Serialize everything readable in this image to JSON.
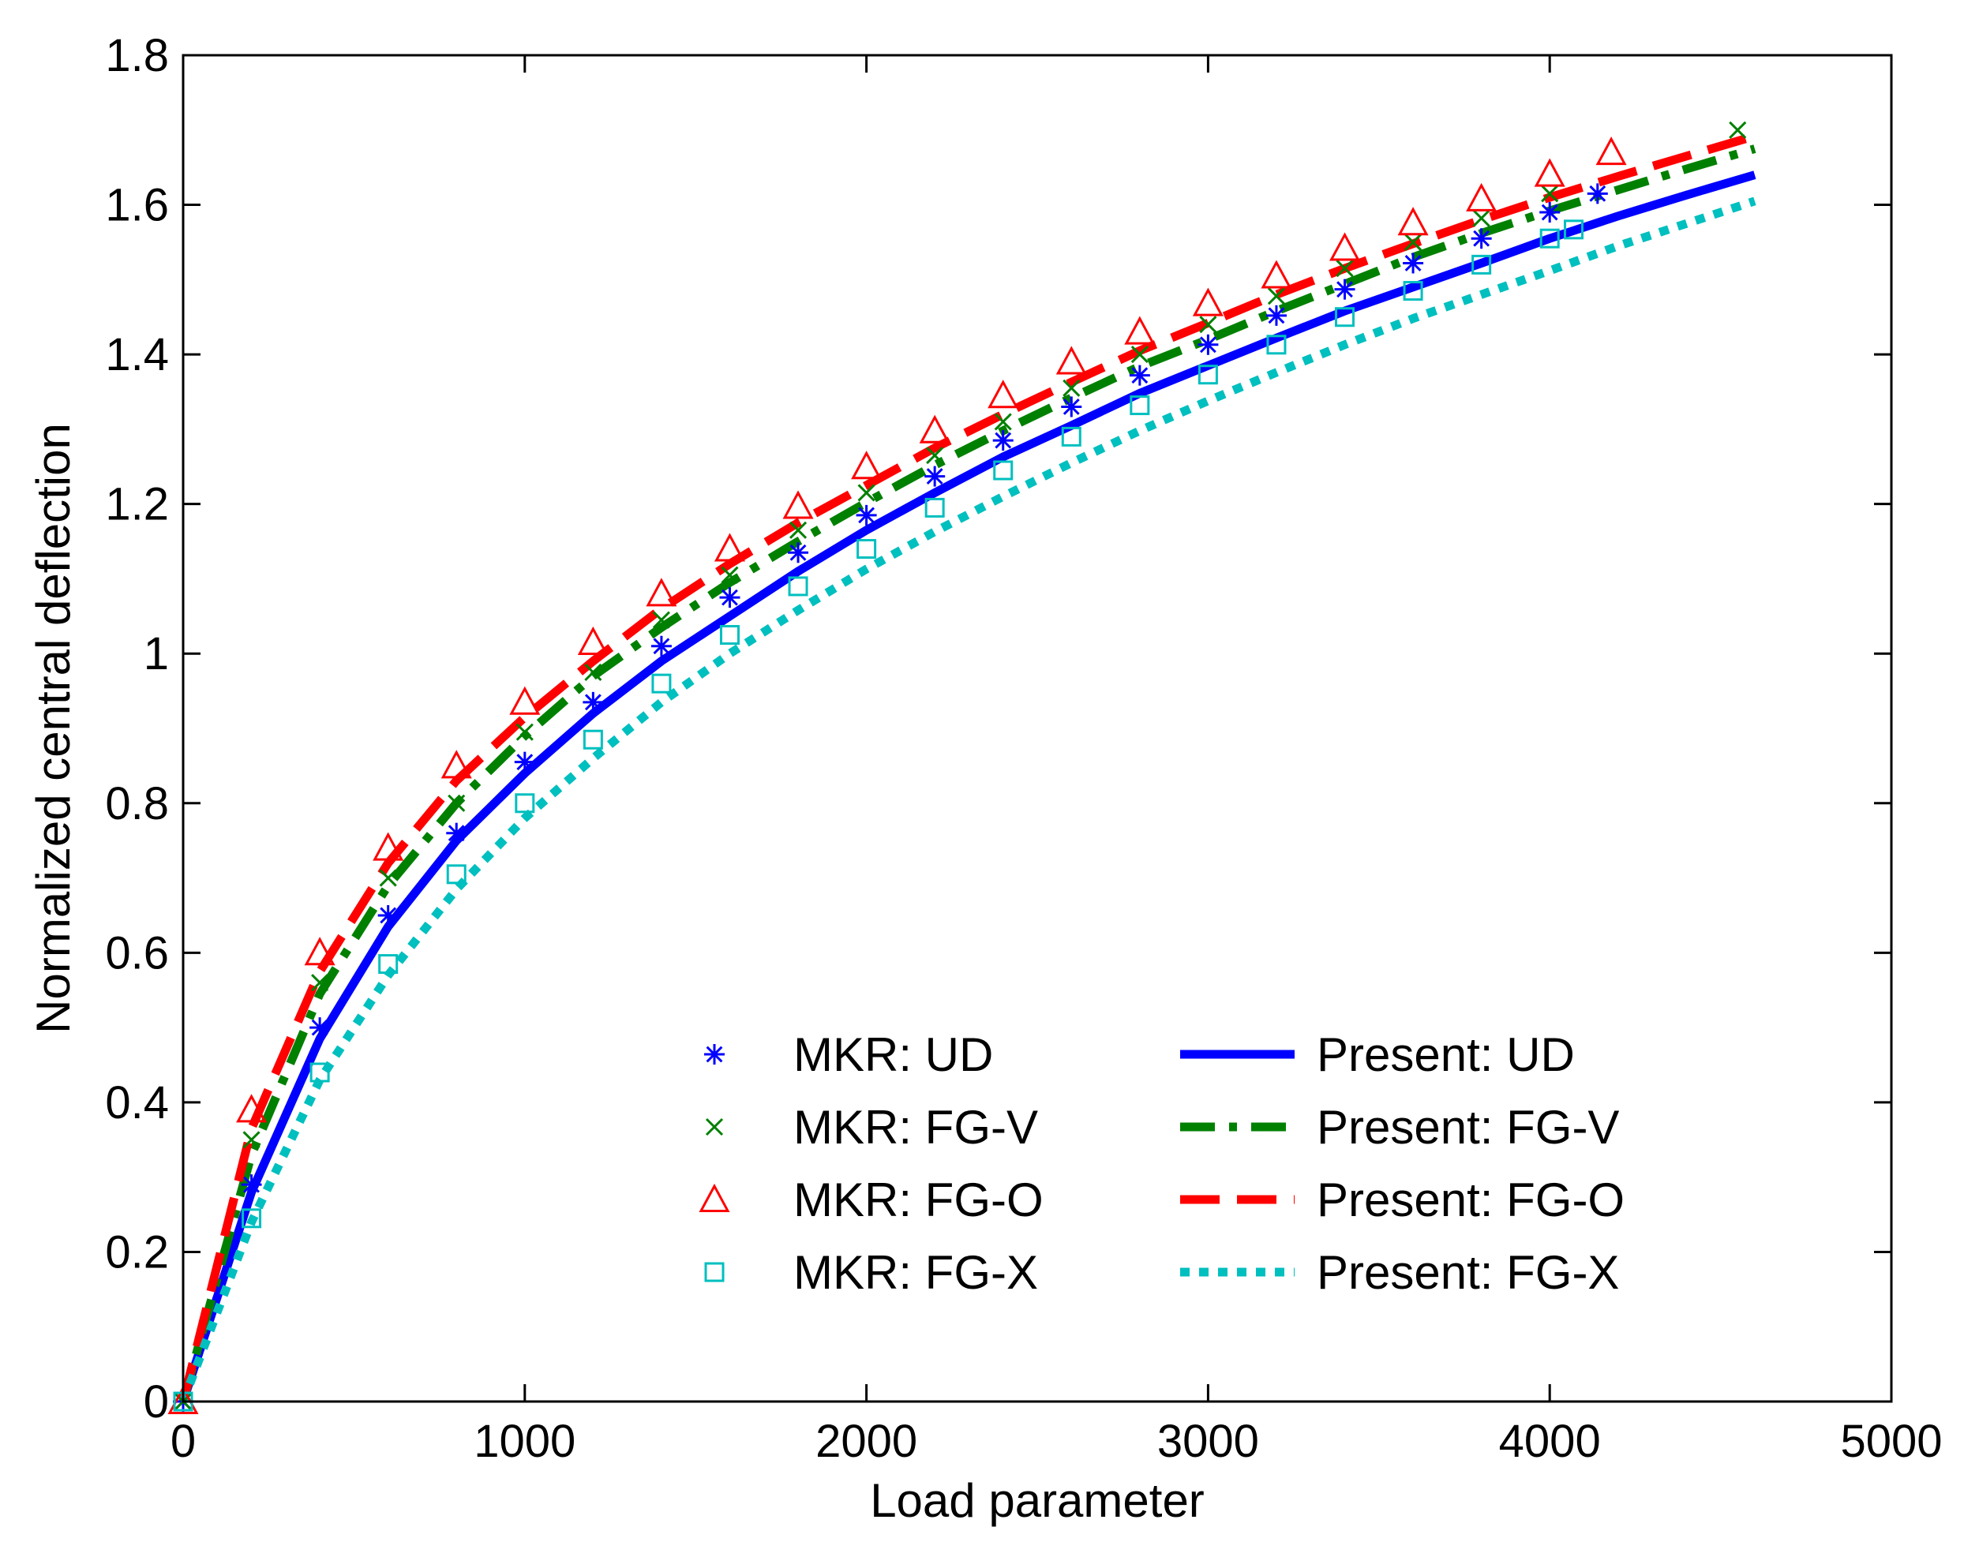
{
  "chart_data": {
    "type": "line",
    "title": "",
    "xlabel": "Load parameter",
    "ylabel": "Normalized central deflection",
    "xlim": [
      0,
      5000
    ],
    "ylim": [
      0,
      1.8
    ],
    "grid": false,
    "legend_position": "center-bottom",
    "x_ticks": [
      0,
      1000,
      2000,
      3000,
      4000,
      5000
    ],
    "y_ticks": [
      0,
      0.2,
      0.4,
      0.6,
      0.8,
      1,
      1.2,
      1.4,
      1.6,
      1.8
    ],
    "x_tick_labels": [
      "0",
      "1000",
      "2000",
      "3000",
      "4000",
      "5000"
    ],
    "y_tick_labels": [
      "0",
      "0.2",
      "0.4",
      "0.6",
      "0.8",
      "1",
      "1.2",
      "1.4",
      "1.6",
      "1.8"
    ],
    "marker_series": [
      {
        "name": "MKR: UD",
        "marker": "asterisk",
        "color": "#0000ff",
        "x": [
          0,
          200,
          400,
          600,
          800,
          1000,
          1200,
          1400,
          1600,
          1800,
          2000,
          2200,
          2400,
          2600,
          2800,
          3000,
          3200,
          3400,
          3600,
          3800,
          4000,
          4140
        ],
        "y": [
          0,
          0.29,
          0.5,
          0.65,
          0.76,
          0.855,
          0.935,
          1.01,
          1.075,
          1.135,
          1.185,
          1.237,
          1.285,
          1.33,
          1.372,
          1.413,
          1.452,
          1.487,
          1.522,
          1.555,
          1.59,
          1.615
        ]
      },
      {
        "name": "MKR: FG-V",
        "marker": "x",
        "color": "#008000",
        "x": [
          0,
          200,
          400,
          600,
          800,
          1000,
          1200,
          1400,
          1600,
          1800,
          2000,
          2200,
          2400,
          2600,
          2800,
          3000,
          3200,
          3400,
          3600,
          3800,
          4000,
          4550
        ],
        "y": [
          0,
          0.35,
          0.56,
          0.7,
          0.8,
          0.895,
          0.975,
          1.045,
          1.105,
          1.165,
          1.215,
          1.265,
          1.31,
          1.355,
          1.4,
          1.44,
          1.478,
          1.515,
          1.55,
          1.582,
          1.615,
          1.7
        ]
      },
      {
        "name": "MKR: FG-O",
        "marker": "triangle",
        "color": "#ff0000",
        "x": [
          0,
          200,
          400,
          600,
          800,
          1000,
          1200,
          1400,
          1600,
          1800,
          2000,
          2200,
          2400,
          2600,
          2800,
          3000,
          3200,
          3400,
          3600,
          3800,
          4000,
          4180
        ],
        "y": [
          0,
          0.39,
          0.6,
          0.74,
          0.85,
          0.935,
          1.015,
          1.08,
          1.14,
          1.197,
          1.25,
          1.298,
          1.345,
          1.39,
          1.43,
          1.468,
          1.505,
          1.542,
          1.576,
          1.608,
          1.641,
          1.67
        ]
      },
      {
        "name": "MKR: FG-X",
        "marker": "square",
        "color": "#00bfbf",
        "x": [
          0,
          200,
          400,
          600,
          800,
          1000,
          1200,
          1400,
          1600,
          1800,
          2000,
          2200,
          2400,
          2600,
          2800,
          3000,
          3200,
          3400,
          3600,
          3800,
          4000,
          4070
        ],
        "y": [
          0,
          0.245,
          0.44,
          0.585,
          0.705,
          0.8,
          0.885,
          0.96,
          1.025,
          1.09,
          1.14,
          1.195,
          1.245,
          1.29,
          1.332,
          1.373,
          1.413,
          1.45,
          1.485,
          1.52,
          1.555,
          1.567
        ]
      }
    ],
    "line_series": [
      {
        "name": "Present: UD",
        "style": "solid",
        "color": "#0000ff",
        "x": [
          0,
          200,
          400,
          600,
          800,
          1000,
          1200,
          1400,
          1600,
          1800,
          2000,
          2200,
          2400,
          2600,
          2800,
          3000,
          3200,
          3400,
          3600,
          3800,
          4000,
          4200,
          4400,
          4600
        ],
        "y": [
          0,
          0.28,
          0.485,
          0.635,
          0.75,
          0.84,
          0.92,
          0.99,
          1.05,
          1.11,
          1.165,
          1.215,
          1.263,
          1.305,
          1.348,
          1.385,
          1.422,
          1.458,
          1.49,
          1.522,
          1.555,
          1.585,
          1.613,
          1.64
        ]
      },
      {
        "name": "Present: FG-V",
        "style": "dashdot",
        "color": "#008000",
        "x": [
          0,
          200,
          400,
          600,
          800,
          1000,
          1200,
          1400,
          1600,
          1800,
          2000,
          2200,
          2400,
          2600,
          2800,
          3000,
          3200,
          3400,
          3600,
          3800,
          4000,
          4200,
          4400,
          4600
        ],
        "y": [
          0,
          0.33,
          0.545,
          0.69,
          0.8,
          0.89,
          0.97,
          1.035,
          1.095,
          1.15,
          1.202,
          1.252,
          1.298,
          1.342,
          1.384,
          1.42,
          1.458,
          1.494,
          1.53,
          1.562,
          1.592,
          1.62,
          1.648,
          1.675
        ]
      },
      {
        "name": "Present: FG-O",
        "style": "dashed",
        "color": "#ff0000",
        "x": [
          0,
          200,
          400,
          600,
          800,
          1000,
          1200,
          1400,
          1600,
          1800,
          2000,
          2200,
          2400,
          2600,
          2800,
          3000,
          3200,
          3400,
          3600,
          3800,
          4000,
          4200,
          4400,
          4600
        ],
        "y": [
          0,
          0.365,
          0.575,
          0.72,
          0.83,
          0.915,
          0.99,
          1.06,
          1.12,
          1.175,
          1.225,
          1.275,
          1.32,
          1.363,
          1.405,
          1.442,
          1.48,
          1.515,
          1.548,
          1.58,
          1.61,
          1.638,
          1.665,
          1.692
        ]
      },
      {
        "name": "Present: FG-X",
        "style": "dotted",
        "color": "#00bfbf",
        "x": [
          0,
          200,
          400,
          600,
          800,
          1000,
          1200,
          1400,
          1600,
          1800,
          2000,
          2200,
          2400,
          2600,
          2800,
          3000,
          3200,
          3400,
          3600,
          3800,
          4000,
          4200,
          4400,
          4600
        ],
        "y": [
          0,
          0.24,
          0.43,
          0.57,
          0.685,
          0.78,
          0.86,
          0.935,
          1.0,
          1.058,
          1.113,
          1.163,
          1.21,
          1.255,
          1.298,
          1.338,
          1.376,
          1.413,
          1.448,
          1.48,
          1.512,
          1.545,
          1.575,
          1.605
        ]
      }
    ]
  }
}
